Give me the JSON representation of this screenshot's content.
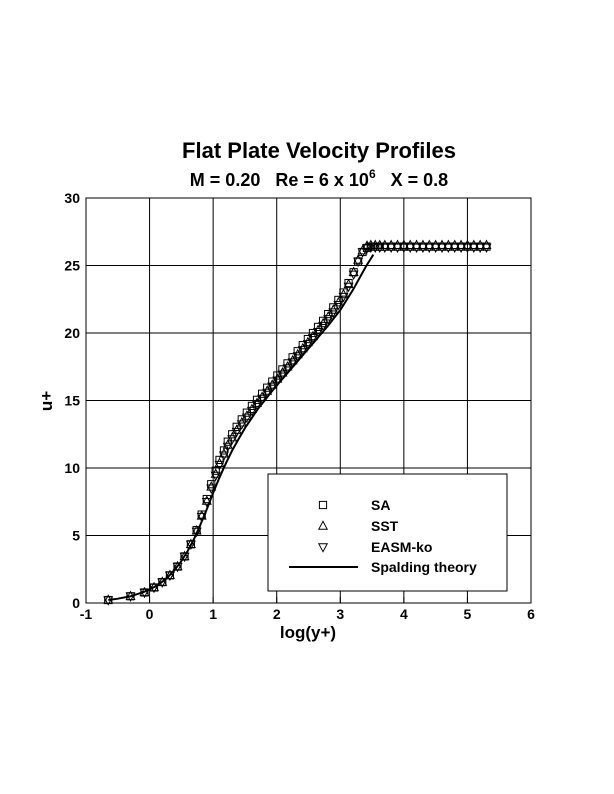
{
  "chart_data": {
    "type": "scatter",
    "title": "Flat Plate Velocity Profiles",
    "subtitle": {
      "mach": "M = 0.20",
      "re_prefix": "Re = 6 x 10",
      "re_exponent": "6",
      "x_station": "X = 0.8"
    },
    "xlabel": "log(y+)",
    "ylabel": "u+",
    "xlim": [
      -1,
      6
    ],
    "ylim": [
      0,
      30
    ],
    "xticks": [
      "-1",
      "0",
      "1",
      "2",
      "3",
      "4",
      "5",
      "6"
    ],
    "yticks": [
      "0",
      "5",
      "10",
      "15",
      "20",
      "25",
      "30"
    ],
    "grid": true,
    "legend_position": "bottom-right",
    "series": [
      {
        "name": "SA",
        "marker": "square",
        "x": [
          -0.65,
          -0.3,
          -0.08,
          0.07,
          0.2,
          0.32,
          0.44,
          0.55,
          0.65,
          0.74,
          0.82,
          0.9,
          0.97,
          1.04,
          1.1,
          1.17,
          1.23,
          1.3,
          1.37,
          1.45,
          1.53,
          1.61,
          1.69,
          1.77,
          1.85,
          1.93,
          2.01,
          2.09,
          2.17,
          2.25,
          2.33,
          2.41,
          2.49,
          2.57,
          2.65,
          2.73,
          2.81,
          2.89,
          2.97,
          3.05,
          3.13,
          3.21,
          3.28,
          3.35,
          3.42,
          3.48,
          3.55,
          3.62,
          3.7,
          3.8,
          3.9,
          4.0,
          4.1,
          4.2,
          4.3,
          4.4,
          4.5,
          4.6,
          4.7,
          4.8,
          4.9,
          5.0,
          5.1,
          5.2,
          5.3
        ],
        "y": [
          0.22,
          0.5,
          0.78,
          1.15,
          1.55,
          2.05,
          2.7,
          3.45,
          4.35,
          5.4,
          6.55,
          7.7,
          8.8,
          9.8,
          10.6,
          11.3,
          11.95,
          12.5,
          13.05,
          13.6,
          14.1,
          14.6,
          15.05,
          15.5,
          15.95,
          16.4,
          16.85,
          17.3,
          17.75,
          18.2,
          18.65,
          19.1,
          19.55,
          20.0,
          20.45,
          20.9,
          21.4,
          21.9,
          22.45,
          23.0,
          23.7,
          24.5,
          25.3,
          26.0,
          26.3,
          26.4,
          26.4,
          26.4,
          26.4,
          26.4,
          26.4,
          26.4,
          26.4,
          26.4,
          26.4,
          26.4,
          26.4,
          26.4,
          26.4,
          26.4,
          26.4,
          26.4,
          26.4,
          26.4,
          26.4
        ]
      },
      {
        "name": "SST",
        "marker": "triangle-up",
        "x": [
          -0.65,
          -0.3,
          -0.08,
          0.07,
          0.2,
          0.32,
          0.44,
          0.55,
          0.65,
          0.74,
          0.82,
          0.9,
          0.97,
          1.04,
          1.1,
          1.17,
          1.23,
          1.3,
          1.37,
          1.45,
          1.53,
          1.61,
          1.69,
          1.77,
          1.85,
          1.93,
          2.01,
          2.09,
          2.17,
          2.25,
          2.33,
          2.41,
          2.49,
          2.57,
          2.65,
          2.73,
          2.81,
          2.89,
          2.97,
          3.05,
          3.13,
          3.21,
          3.28,
          3.35,
          3.42,
          3.48,
          3.55,
          3.62,
          3.7,
          3.8,
          3.9,
          4.0,
          4.1,
          4.2,
          4.3,
          4.4,
          4.5,
          4.6,
          4.7,
          4.8,
          4.9,
          5.0,
          5.1,
          5.2,
          5.3
        ],
        "y": [
          0.22,
          0.5,
          0.78,
          1.15,
          1.55,
          2.05,
          2.7,
          3.45,
          4.35,
          5.35,
          6.45,
          7.55,
          8.6,
          9.55,
          10.35,
          11.05,
          11.7,
          12.25,
          12.8,
          13.35,
          13.85,
          14.35,
          14.8,
          15.25,
          15.7,
          16.15,
          16.6,
          17.05,
          17.5,
          17.95,
          18.4,
          18.85,
          19.3,
          19.75,
          20.2,
          20.7,
          21.2,
          21.7,
          22.25,
          22.85,
          23.6,
          24.5,
          25.4,
          26.1,
          26.45,
          26.5,
          26.5,
          26.5,
          26.5,
          26.5,
          26.5,
          26.5,
          26.5,
          26.5,
          26.5,
          26.5,
          26.5,
          26.5,
          26.5,
          26.5,
          26.5,
          26.5,
          26.5,
          26.5,
          26.5
        ]
      },
      {
        "name": "EASM-ko",
        "marker": "triangle-down",
        "x": [
          -0.65,
          -0.3,
          -0.08,
          0.07,
          0.2,
          0.32,
          0.44,
          0.55,
          0.65,
          0.74,
          0.82,
          0.9,
          0.97,
          1.04,
          1.1,
          1.17,
          1.23,
          1.3,
          1.37,
          1.45,
          1.53,
          1.61,
          1.69,
          1.77,
          1.85,
          1.93,
          2.01,
          2.09,
          2.17,
          2.25,
          2.33,
          2.41,
          2.49,
          2.57,
          2.65,
          2.73,
          2.81,
          2.89,
          2.97,
          3.05,
          3.13,
          3.21,
          3.28,
          3.35,
          3.42,
          3.48,
          3.55,
          3.62,
          3.7,
          3.8,
          3.9,
          4.0,
          4.1,
          4.2,
          4.3,
          4.4,
          4.5,
          4.6,
          4.7,
          4.8,
          4.9,
          5.0,
          5.1,
          5.2,
          5.3
        ],
        "y": [
          0.22,
          0.5,
          0.78,
          1.15,
          1.55,
          2.05,
          2.7,
          3.45,
          4.35,
          5.3,
          6.4,
          7.5,
          8.5,
          9.45,
          10.25,
          10.95,
          11.6,
          12.15,
          12.7,
          13.25,
          13.75,
          14.25,
          14.7,
          15.15,
          15.6,
          16.05,
          16.5,
          16.95,
          17.4,
          17.85,
          18.3,
          18.75,
          19.2,
          19.65,
          20.1,
          20.55,
          21.05,
          21.55,
          22.1,
          22.7,
          23.45,
          24.35,
          25.3,
          26.0,
          26.3,
          26.35,
          26.35,
          26.35,
          26.35,
          26.35,
          26.35,
          26.35,
          26.35,
          26.35,
          26.35,
          26.35,
          26.35,
          26.35,
          26.35,
          26.35,
          26.35,
          26.35,
          26.35,
          26.35,
          26.35
        ]
      },
      {
        "name": "Spalding theory",
        "marker": "line",
        "x": [
          -0.65,
          -0.5,
          -0.3,
          -0.1,
          0.0,
          0.1,
          0.2,
          0.3,
          0.4,
          0.5,
          0.6,
          0.7,
          0.8,
          0.9,
          1.0,
          1.1,
          1.2,
          1.3,
          1.4,
          1.5,
          1.6,
          1.7,
          1.8,
          1.9,
          2.0,
          2.2,
          2.4,
          2.6,
          2.8,
          3.0,
          3.2,
          3.4,
          3.52
        ],
        "y": [
          0.22,
          0.32,
          0.5,
          0.8,
          1.0,
          1.25,
          1.58,
          1.98,
          2.49,
          3.1,
          3.85,
          4.75,
          5.8,
          6.95,
          8.15,
          9.3,
          10.35,
          11.3,
          12.15,
          12.95,
          13.65,
          14.35,
          14.95,
          15.55,
          16.1,
          17.2,
          18.3,
          19.4,
          20.5,
          21.7,
          23.2,
          24.9,
          25.8
        ]
      }
    ]
  }
}
